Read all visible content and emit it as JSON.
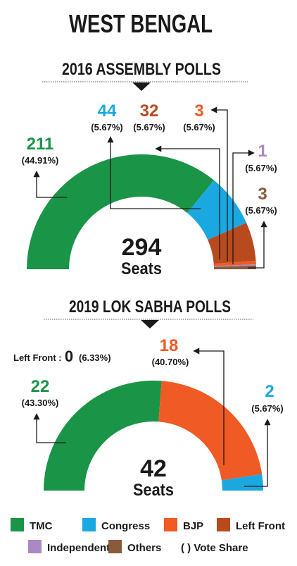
{
  "title": "WEST BENGAL",
  "colors": {
    "TMC": "#1a9446",
    "Congress": "#1aa8e0",
    "BJP": "#f05a24",
    "Left Front": "#b84a1e",
    "Independent": "#a98ac4",
    "Others": "#8a5a3c",
    "ink": "#1a1a1a"
  },
  "chart_data": [
    {
      "type": "pie",
      "style": "semi-donut",
      "title": "2016 ASSEMBLY POLLS",
      "center_value": "294",
      "center_label": "Seats",
      "total": 294,
      "slices": [
        {
          "party": "TMC",
          "seats": 211,
          "seats_label": "211",
          "share_label": "(44.91%)"
        },
        {
          "party": "Congress",
          "seats": 44,
          "seats_label": "44",
          "share_label": "(5.67%)"
        },
        {
          "party": "Left Front",
          "seats": 32,
          "seats_label": "32",
          "share_label": "(5.67%)"
        },
        {
          "party": "BJP",
          "seats": 3,
          "seats_label": "3",
          "share_label": "(5.67%)"
        },
        {
          "party": "Independent",
          "seats": 1,
          "seats_label": "1",
          "share_label": "(5.67%)"
        },
        {
          "party": "Others",
          "seats": 3,
          "seats_label": "3",
          "share_label": "(5.67%)"
        }
      ]
    },
    {
      "type": "pie",
      "style": "semi-donut",
      "title": "2019 LOK SABHA POLLS",
      "center_value": "42",
      "center_label": "Seats",
      "total": 42,
      "slices": [
        {
          "party": "TMC",
          "seats": 22,
          "seats_label": "22",
          "share_label": "(43.30%)"
        },
        {
          "party": "BJP",
          "seats": 18,
          "seats_label": "18",
          "share_label": "(40.70%)"
        },
        {
          "party": "Congress",
          "seats": 2,
          "seats_label": "2",
          "share_label": "(5.67%)"
        }
      ],
      "extra_label": {
        "prefix": "Left Front :",
        "seats_label": "0",
        "share_label": "(6.33%)"
      }
    }
  ],
  "legend": [
    {
      "party": "TMC",
      "label": "TMC"
    },
    {
      "party": "Congress",
      "label": "Congress"
    },
    {
      "party": "BJP",
      "label": "BJP"
    },
    {
      "party": "Left Front",
      "label": "Left Front"
    },
    {
      "party": "Independent",
      "label": "Independent"
    },
    {
      "party": "Others",
      "label": "Others"
    }
  ],
  "legend_note": "( ) Vote Share"
}
